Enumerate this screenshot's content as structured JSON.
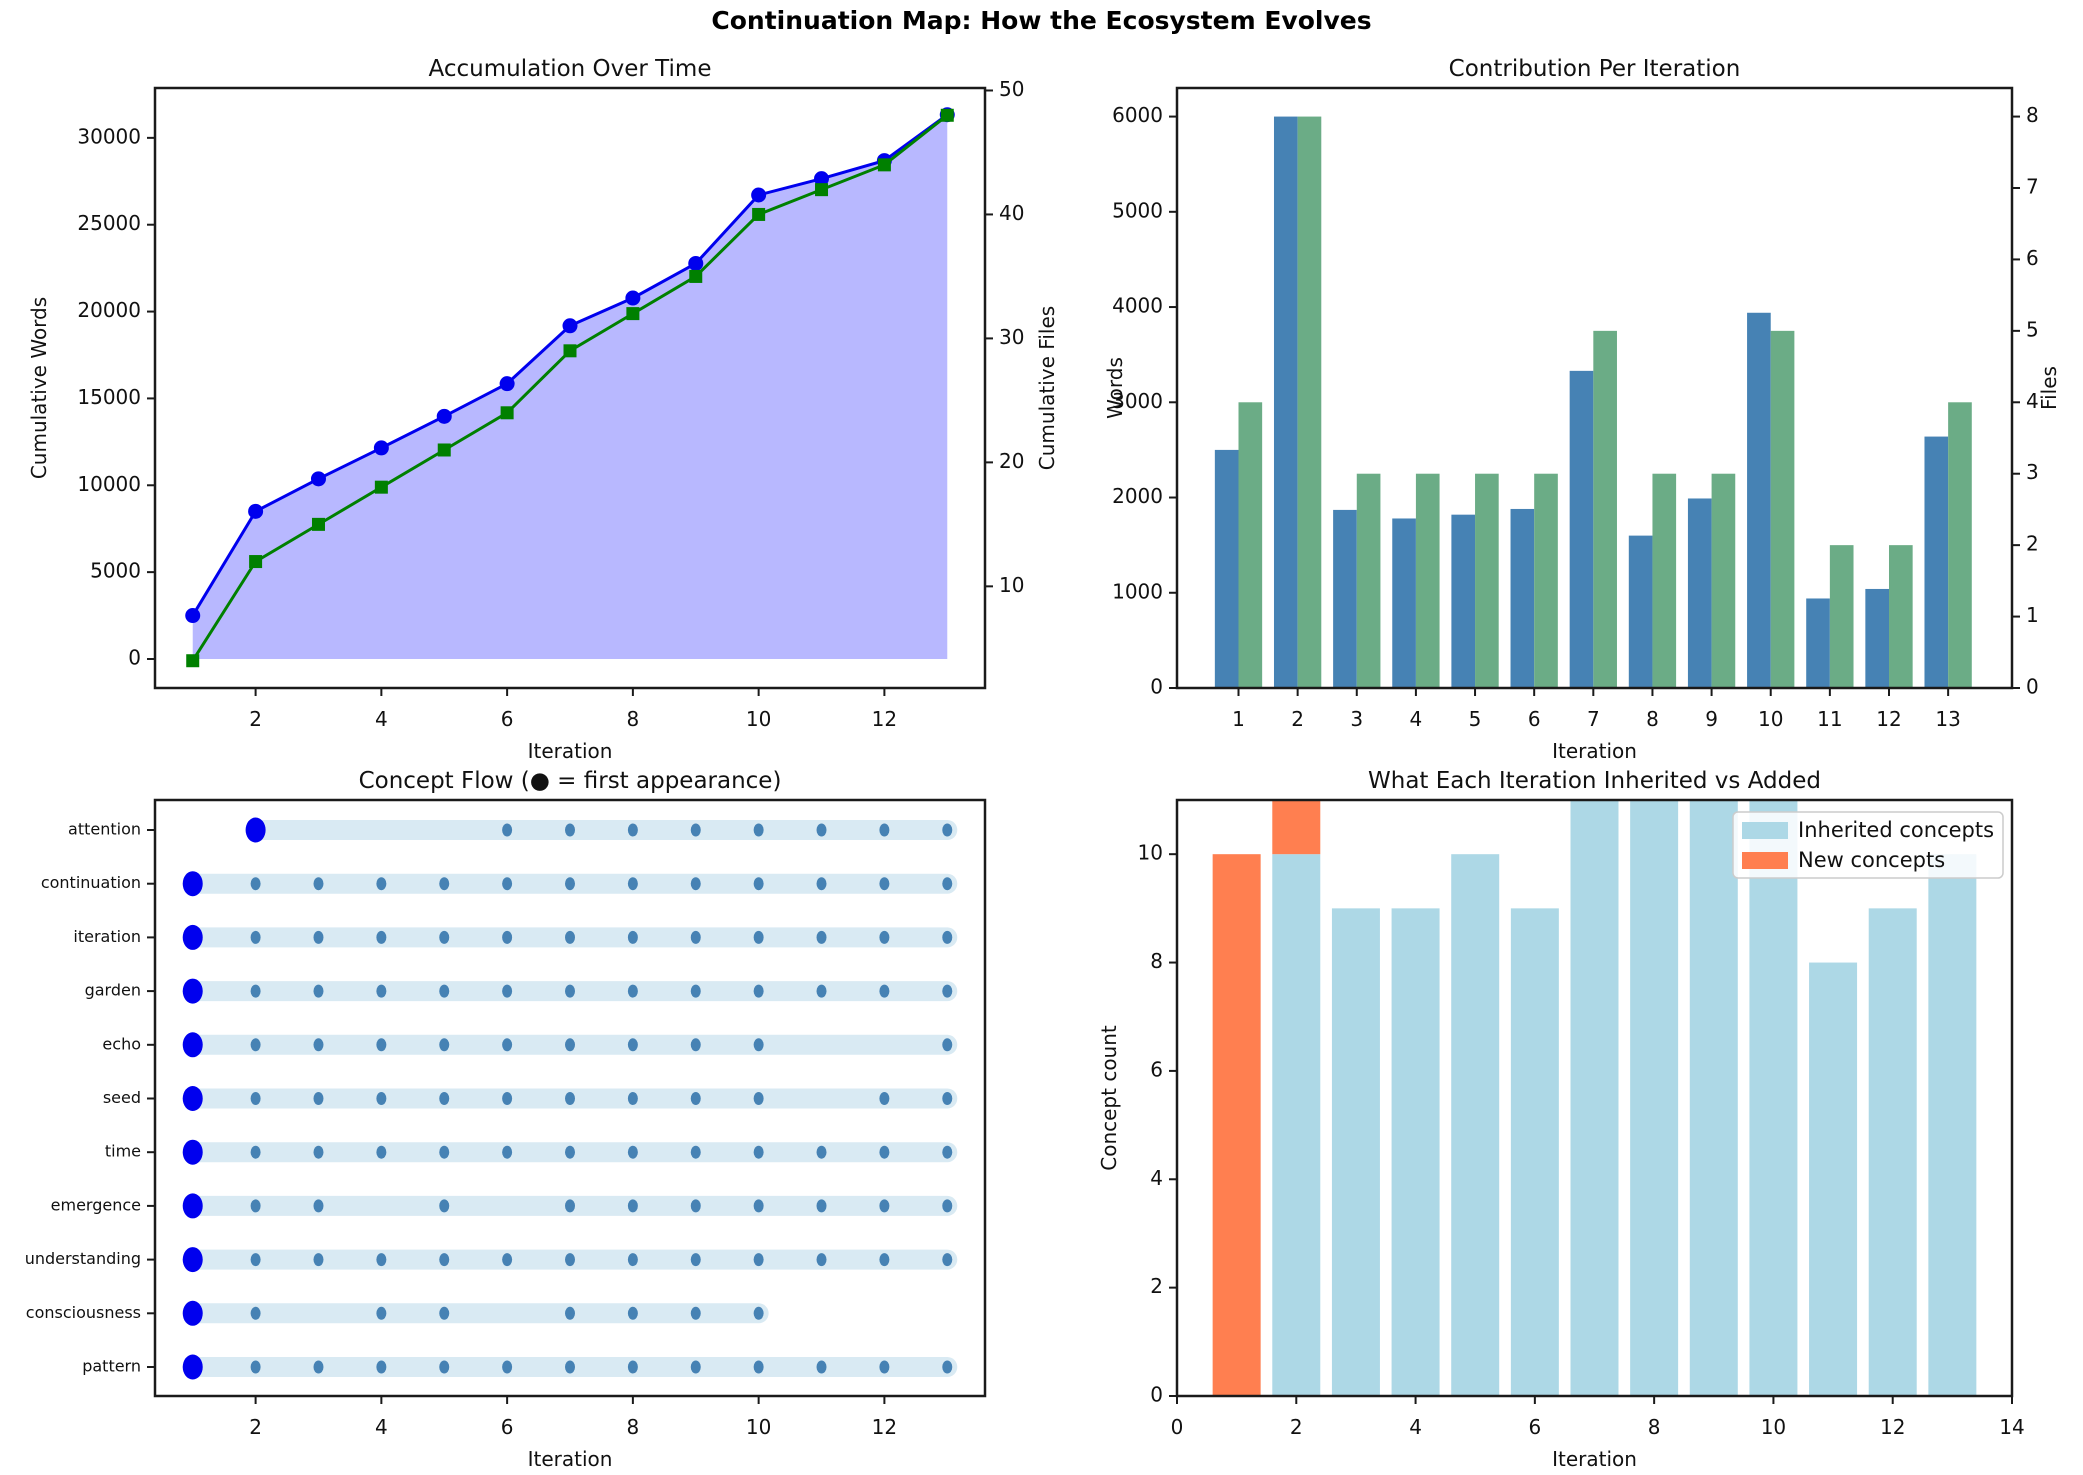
{
  "figure": {
    "suptitle": "Continuation Map: How the Ecosystem Evolves",
    "background": "#ffffff"
  },
  "chart_data": [
    {
      "type": "line",
      "title": "Accumulation Over Time",
      "xlabel": "Iteration",
      "ylabel_left": "Cumulative Words",
      "ylabel_right": "Cumulative Files",
      "x": [
        1,
        2,
        3,
        4,
        5,
        6,
        7,
        8,
        9,
        10,
        11,
        12,
        13
      ],
      "series": [
        {
          "name": "Cumulative Words",
          "axis": "left",
          "color": "#0000EE",
          "marker": "circle",
          "values": [
            2500,
            8500,
            10370,
            12150,
            13970,
            15850,
            19180,
            20780,
            22770,
            26710,
            27650,
            28690,
            31330
          ]
        },
        {
          "name": "Cumulative Files",
          "axis": "right",
          "color": "#008000",
          "marker": "square",
          "values": [
            4,
            12,
            15,
            18,
            21,
            24,
            29,
            32,
            35,
            40,
            42,
            44,
            48
          ]
        }
      ],
      "fill_color": "rgba(0,0,255,0.28)",
      "x_ticks": [
        2,
        4,
        6,
        8,
        10,
        12
      ],
      "left_ticks": [
        0,
        5000,
        10000,
        15000,
        20000,
        25000,
        30000
      ],
      "right_ticks": [
        10,
        20,
        30,
        40,
        50
      ],
      "xlim": [
        0.4,
        13.6
      ],
      "ylim_left": [
        -1670,
        32870
      ],
      "ylim_right": [
        1.8,
        50.2
      ],
      "grid": false
    },
    {
      "type": "bar",
      "title": "Contribution Per Iteration",
      "xlabel": "Iteration",
      "ylabel_left": "Words",
      "ylabel_right": "Files",
      "categories": [
        1,
        2,
        3,
        4,
        5,
        6,
        7,
        8,
        9,
        10,
        11,
        12,
        13
      ],
      "series": [
        {
          "name": "Words",
          "axis": "left",
          "color": "#4682B4",
          "values": [
            2500,
            6000,
            1870,
            1780,
            1820,
            1880,
            3330,
            1600,
            1990,
            3940,
            940,
            1040,
            2640
          ]
        },
        {
          "name": "Files",
          "axis": "right",
          "color": "#6BAC86",
          "values": [
            4,
            8,
            3,
            3,
            3,
            3,
            5,
            3,
            3,
            5,
            2,
            2,
            4
          ]
        }
      ],
      "x_ticks": [
        1,
        2,
        3,
        4,
        5,
        6,
        7,
        8,
        9,
        10,
        11,
        12,
        13
      ],
      "left_ticks": [
        0,
        1000,
        2000,
        3000,
        4000,
        5000,
        6000
      ],
      "right_ticks": [
        0,
        1,
        2,
        3,
        4,
        5,
        6,
        7,
        8
      ],
      "xlim": [
        -0.04,
        14.08
      ],
      "ylim_left": [
        0,
        6300
      ],
      "ylim_right": [
        0,
        8.4
      ],
      "grid": false
    },
    {
      "type": "scatter",
      "title": "Concept Flow (● = first appearance)",
      "xlabel": "Iteration",
      "band_color": "#D9EAF3",
      "dot_color": "#4682B4",
      "first_color": "#0000EE",
      "concepts": [
        {
          "label": "attention",
          "first": 2,
          "last": 13,
          "present": [
            2,
            6,
            7,
            8,
            9,
            10,
            11,
            12,
            13
          ]
        },
        {
          "label": "continuation",
          "first": 1,
          "last": 13,
          "present": [
            1,
            2,
            3,
            4,
            5,
            6,
            7,
            8,
            9,
            10,
            11,
            12,
            13
          ]
        },
        {
          "label": "iteration",
          "first": 1,
          "last": 13,
          "present": [
            1,
            2,
            3,
            4,
            5,
            6,
            7,
            8,
            9,
            10,
            11,
            12,
            13
          ]
        },
        {
          "label": "garden",
          "first": 1,
          "last": 13,
          "present": [
            1,
            2,
            3,
            4,
            5,
            6,
            7,
            8,
            9,
            10,
            11,
            12,
            13
          ]
        },
        {
          "label": "echo",
          "first": 1,
          "last": 13,
          "present": [
            1,
            2,
            3,
            4,
            5,
            6,
            7,
            8,
            9,
            10,
            13
          ]
        },
        {
          "label": "seed",
          "first": 1,
          "last": 13,
          "present": [
            1,
            2,
            3,
            4,
            5,
            6,
            7,
            8,
            9,
            10,
            12,
            13
          ]
        },
        {
          "label": "time",
          "first": 1,
          "last": 13,
          "present": [
            1,
            2,
            3,
            4,
            5,
            6,
            7,
            8,
            9,
            10,
            11,
            12,
            13
          ]
        },
        {
          "label": "emergence",
          "first": 1,
          "last": 13,
          "present": [
            1,
            2,
            3,
            5,
            7,
            8,
            9,
            10,
            11,
            12,
            13
          ]
        },
        {
          "label": "understanding",
          "first": 1,
          "last": 13,
          "present": [
            1,
            2,
            3,
            4,
            5,
            6,
            7,
            8,
            9,
            10,
            11,
            12,
            13
          ]
        },
        {
          "label": "consciousness",
          "first": 1,
          "last": 10,
          "present": [
            1,
            2,
            4,
            5,
            7,
            8,
            9,
            10
          ]
        },
        {
          "label": "pattern",
          "first": 1,
          "last": 13,
          "present": [
            1,
            2,
            3,
            4,
            5,
            6,
            7,
            8,
            9,
            10,
            11,
            12,
            13
          ]
        }
      ],
      "x_ticks": [
        2,
        4,
        6,
        8,
        10,
        12
      ],
      "xlim": [
        0.4,
        13.6
      ],
      "grid": false
    },
    {
      "type": "bar",
      "subtype": "stacked",
      "title": "What Each Iteration Inherited vs Added",
      "xlabel": "Iteration",
      "ylabel": "Concept count",
      "categories": [
        1,
        2,
        3,
        4,
        5,
        6,
        7,
        8,
        9,
        10,
        11,
        12,
        13
      ],
      "series": [
        {
          "name": "Inherited concepts",
          "color": "#ADD8E6",
          "values": [
            0,
            10,
            9,
            9,
            10,
            9,
            11,
            11,
            11,
            11,
            8,
            9,
            10
          ]
        },
        {
          "name": "New concepts",
          "color": "#FF7F50",
          "values": [
            10,
            1,
            0,
            0,
            0,
            0,
            0,
            0,
            0,
            0,
            0,
            0,
            0
          ]
        }
      ],
      "x_ticks": [
        0,
        2,
        4,
        6,
        8,
        10,
        12,
        14
      ],
      "y_ticks": [
        0,
        2,
        4,
        6,
        8,
        10
      ],
      "xlim": [
        0,
        14
      ],
      "ylim": [
        0,
        11
      ],
      "legend_position": "upper right",
      "grid": false
    }
  ]
}
